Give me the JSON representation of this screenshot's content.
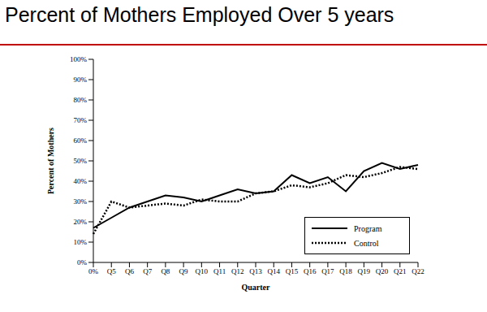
{
  "chart_data": {
    "type": "line",
    "title": "Percent of Mothers Employed Over 5 years",
    "x_label": "Quarter",
    "y_label": "Percent of Mothers",
    "categories": [
      "0%",
      "Q5",
      "Q6",
      "Q7",
      "Q8",
      "Q9",
      "Q10",
      "Q11",
      "Q12",
      "Q13",
      "Q14",
      "Q15",
      "Q16",
      "Q17",
      "Q18",
      "Q19",
      "Q20",
      "Q21",
      "Q22"
    ],
    "series": [
      {
        "name": "Program",
        "color": "#000000",
        "line_style": "solid",
        "values": [
          17,
          22,
          27,
          30,
          33,
          32,
          30,
          33,
          36,
          34,
          35,
          43,
          39,
          42,
          35,
          45,
          49,
          46,
          48
        ]
      },
      {
        "name": "Control",
        "color": "#000000",
        "line_style": "dotted",
        "values": [
          14,
          30,
          27,
          28,
          29,
          28,
          31,
          30,
          30,
          34,
          35,
          38,
          37,
          39,
          43,
          42,
          44,
          47,
          46
        ]
      }
    ],
    "ylim": [
      0,
      100
    ],
    "yticks": [
      {
        "value": 0,
        "label": "0%"
      },
      {
        "value": 10,
        "label": "10%"
      },
      {
        "value": 20,
        "label": "20%"
      },
      {
        "value": 30,
        "label": "30%"
      },
      {
        "value": 40,
        "label": "40%"
      },
      {
        "value": 50,
        "label": "50%"
      },
      {
        "value": 60,
        "label": "60%"
      },
      {
        "value": 70,
        "label": "70%"
      },
      {
        "value": 80,
        "label": "80%"
      },
      {
        "value": 90,
        "label": "90%"
      },
      {
        "value": 100,
        "label": "100%"
      }
    ],
    "grid": false,
    "legend": "lower right"
  }
}
